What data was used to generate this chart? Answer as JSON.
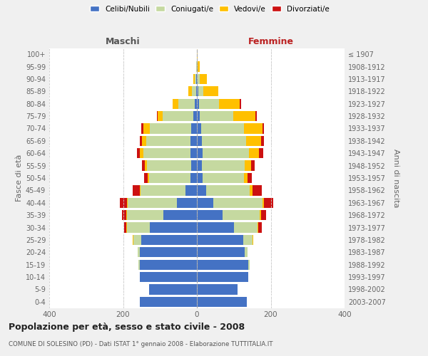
{
  "age_groups": [
    "0-4",
    "5-9",
    "10-14",
    "15-19",
    "20-24",
    "25-29",
    "30-34",
    "35-39",
    "40-44",
    "45-49",
    "50-54",
    "55-59",
    "60-64",
    "65-69",
    "70-74",
    "75-79",
    "80-84",
    "85-89",
    "90-94",
    "95-99",
    "100+"
  ],
  "birth_years": [
    "2003-2007",
    "1998-2002",
    "1993-1997",
    "1988-1992",
    "1983-1987",
    "1978-1982",
    "1973-1977",
    "1968-1972",
    "1963-1967",
    "1958-1962",
    "1953-1957",
    "1948-1952",
    "1943-1947",
    "1938-1942",
    "1933-1937",
    "1928-1932",
    "1923-1927",
    "1918-1922",
    "1913-1917",
    "1908-1912",
    "≤ 1907"
  ],
  "male": {
    "celibi": [
      155,
      130,
      155,
      155,
      155,
      150,
      128,
      90,
      55,
      30,
      18,
      16,
      18,
      17,
      15,
      10,
      5,
      2,
      1,
      0,
      0
    ],
    "coniugati": [
      0,
      0,
      0,
      3,
      5,
      22,
      62,
      100,
      132,
      122,
      112,
      120,
      126,
      120,
      112,
      82,
      46,
      12,
      4,
      1,
      0
    ],
    "vedovi": [
      0,
      0,
      0,
      0,
      0,
      2,
      2,
      2,
      3,
      3,
      3,
      5,
      10,
      12,
      18,
      15,
      15,
      10,
      5,
      1,
      0
    ],
    "divorziati": [
      0,
      0,
      0,
      0,
      0,
      0,
      5,
      10,
      18,
      18,
      10,
      8,
      8,
      5,
      5,
      2,
      0,
      0,
      0,
      0,
      0
    ]
  },
  "female": {
    "nubili": [
      135,
      110,
      140,
      140,
      130,
      125,
      100,
      70,
      45,
      25,
      15,
      14,
      15,
      14,
      12,
      8,
      5,
      3,
      2,
      1,
      0
    ],
    "coniugate": [
      0,
      0,
      0,
      3,
      8,
      25,
      65,
      100,
      132,
      118,
      112,
      115,
      126,
      120,
      115,
      90,
      55,
      15,
      5,
      1,
      0
    ],
    "vedove": [
      0,
      0,
      0,
      0,
      0,
      2,
      2,
      3,
      5,
      8,
      10,
      18,
      28,
      40,
      50,
      60,
      55,
      40,
      20,
      5,
      1
    ],
    "divorziate": [
      0,
      0,
      0,
      0,
      0,
      0,
      8,
      15,
      25,
      25,
      12,
      10,
      10,
      8,
      5,
      5,
      5,
      0,
      0,
      0,
      0
    ]
  },
  "colors": {
    "celibi": "#4472c4",
    "coniugati": "#c5d9a0",
    "vedovi": "#ffc000",
    "divorziati": "#cc1111"
  },
  "legend_labels": [
    "Celibi/Nubili",
    "Coniugati/e",
    "Vedovi/e",
    "Divorziati/e"
  ],
  "title": "Popolazione per età, sesso e stato civile - 2008",
  "subtitle": "COMUNE DI SOLESINO (PD) - Dati ISTAT 1° gennaio 2008 - Elaborazione TUTTITALIA.IT",
  "label_maschi": "Maschi",
  "label_femmine": "Femmine",
  "ylabel_left": "Fasce di età",
  "ylabel_right": "Anni di nascita",
  "xlim": 400,
  "bg_color": "#f0f0f0",
  "plot_bg": "#ffffff"
}
